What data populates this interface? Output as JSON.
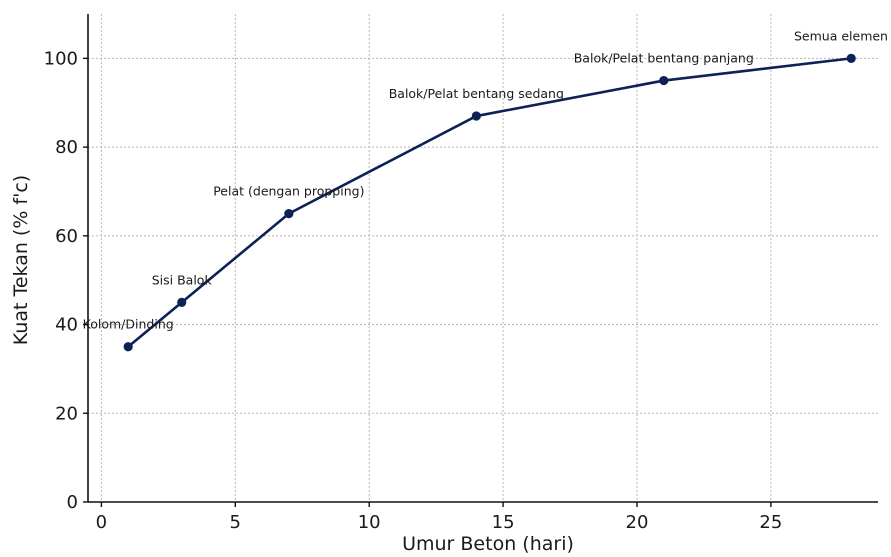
{
  "chart_data": {
    "type": "line",
    "title": "",
    "xlabel": "Umur Beton (hari)",
    "ylabel": "Kuat Tekan (% f'c)",
    "xlim": [
      -0.5,
      29
    ],
    "ylim": [
      0,
      110
    ],
    "xticks": [
      0,
      5,
      10,
      15,
      20,
      25
    ],
    "yticks": [
      0,
      20,
      40,
      60,
      80,
      100
    ],
    "grid": true,
    "legend": "none",
    "series": [
      {
        "color": "#0d2157",
        "points": [
          {
            "x": 1,
            "y": 35,
            "label": "Kolom/Dinding"
          },
          {
            "x": 3,
            "y": 45,
            "label": "Sisi Balok"
          },
          {
            "x": 7,
            "y": 65,
            "label": "Pelat (dengan propping)"
          },
          {
            "x": 14,
            "y": 87,
            "label": "Balok/Pelat bentang sedang"
          },
          {
            "x": 21,
            "y": 95,
            "label": "Balok/Pelat bentang panjang"
          },
          {
            "x": 28,
            "y": 100,
            "label": "Semua elemen"
          }
        ]
      }
    ]
  }
}
